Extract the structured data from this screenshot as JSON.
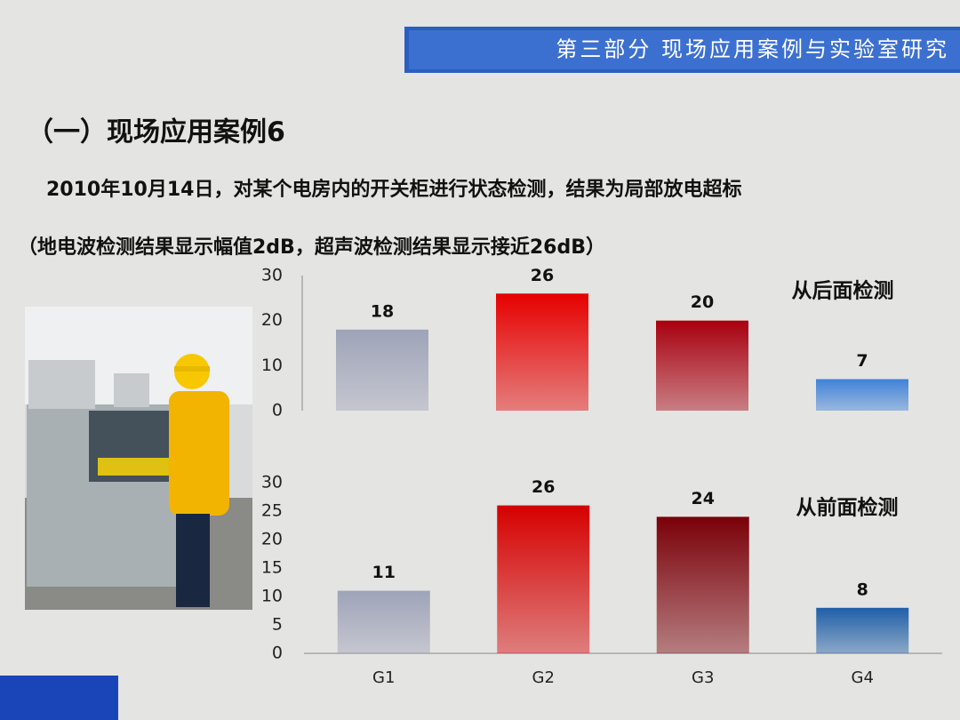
{
  "header": {
    "section": "第三部分 现场应用案例与实验室研究",
    "title": "（一）现场应用案例6"
  },
  "description": [
    "2010年10月14日，对某个电房内的开关柜进行状态检测，结果为局部放电超标",
    "（地电波检测结果显示幅值2dB，超声波检测结果显示接近26dB）"
  ],
  "chart_data": [
    {
      "type": "bar",
      "annotation": "从后面检测",
      "categories": [
        null,
        null,
        null,
        null
      ],
      "values": [
        18,
        26,
        20,
        7
      ],
      "colors": [
        "#9ea3b8",
        "#e60000",
        "#a8000f",
        "#3f82d8"
      ],
      "ylim": [
        0,
        30
      ],
      "yticks": [
        0,
        10,
        20,
        30
      ]
    },
    {
      "type": "bar",
      "annotation": "从前面检测",
      "categories": [
        "G1",
        "G2",
        "G3",
        "G4"
      ],
      "values": [
        11,
        26,
        24,
        8
      ],
      "colors": [
        "#9ea3b8",
        "#d60000",
        "#7a0008",
        "#1f5fa8"
      ],
      "ylim": [
        0,
        30
      ],
      "yticks": [
        0,
        5,
        10,
        15,
        20,
        25,
        30
      ]
    }
  ]
}
